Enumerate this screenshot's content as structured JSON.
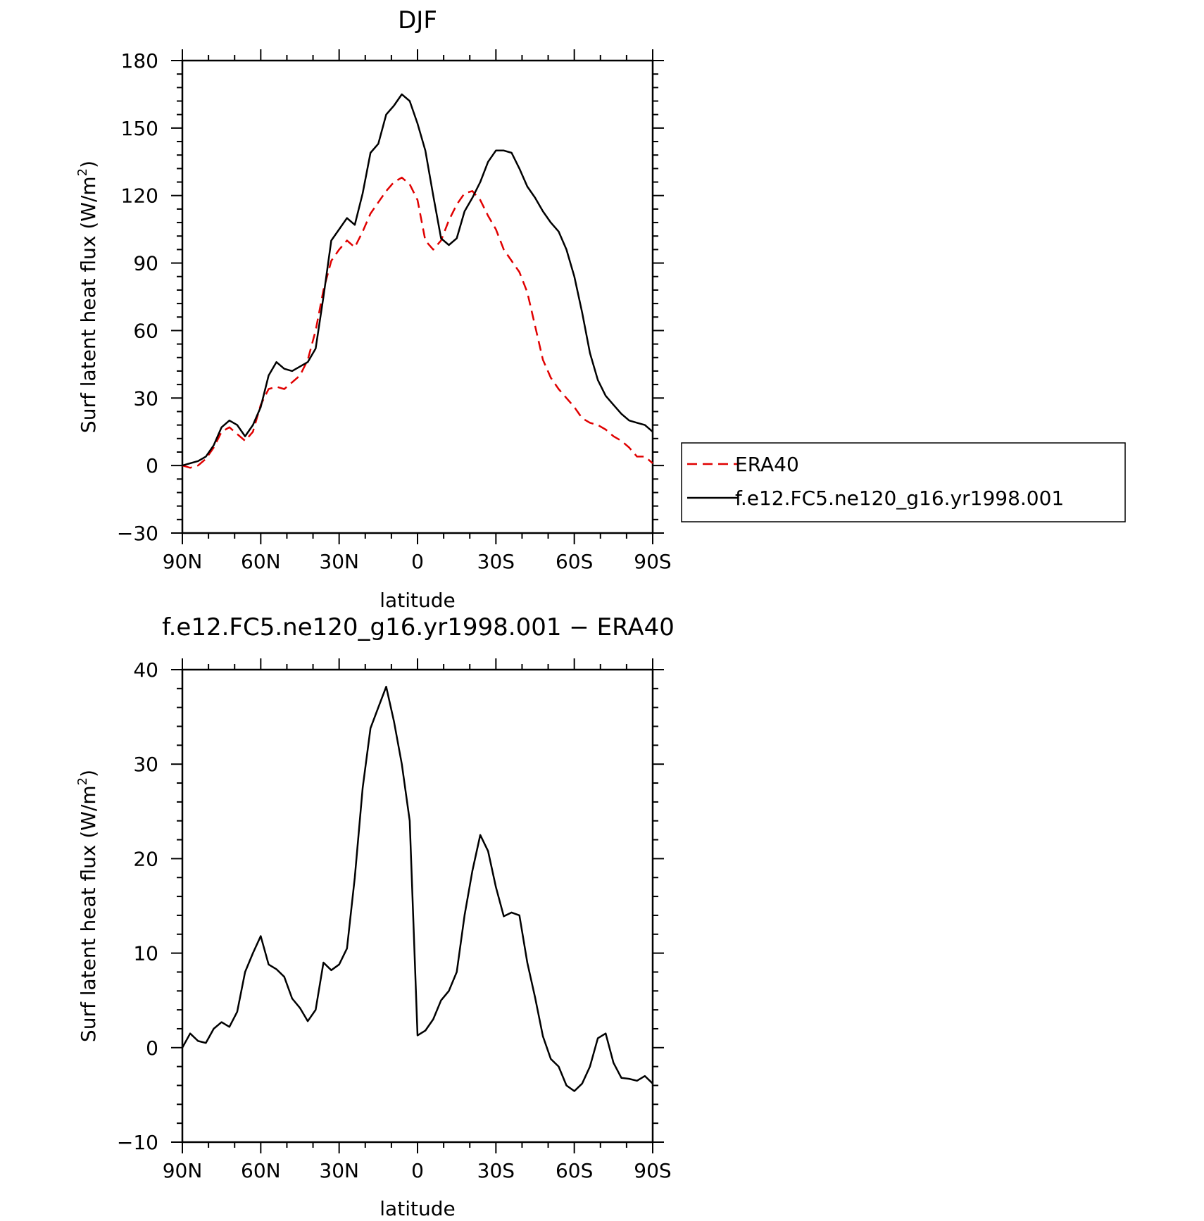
{
  "chart_data": [
    {
      "type": "line",
      "title": "DJF",
      "xlabel": "latitude",
      "ylabel": "Surf latent heat flux (W/m",
      "ylabel_sup": "2",
      "ylabel_close": ")",
      "xlim": [
        90,
        -90
      ],
      "ylim": [
        -30,
        180
      ],
      "x_ticks": [
        90,
        60,
        30,
        0,
        -30,
        -60,
        -90
      ],
      "x_tick_labels": [
        "90N",
        "60N",
        "30N",
        "0",
        "30S",
        "60S",
        "90S"
      ],
      "y_ticks": [
        -30,
        0,
        30,
        60,
        90,
        120,
        150,
        180
      ],
      "y_tick_labels": [
        "−30",
        "0",
        "30",
        "60",
        "90",
        "120",
        "150",
        "180"
      ],
      "legend_position": "right",
      "series": [
        {
          "name": "ERA40",
          "color": "#e00000",
          "dash": true,
          "x": [
            90,
            87,
            84,
            81,
            78,
            75,
            72,
            69,
            66,
            63,
            60,
            57,
            54,
            51,
            48,
            45,
            42,
            39,
            36,
            33,
            30,
            27,
            24,
            21,
            18,
            15,
            12,
            9,
            6,
            3,
            0,
            -3,
            -6,
            -9,
            -12,
            -15,
            -18,
            -21,
            -24,
            -27,
            -30,
            -33,
            -36,
            -39,
            -42,
            -45,
            -48,
            -51,
            -54,
            -57,
            -60,
            -63,
            -66,
            -69,
            -72,
            -75,
            -78,
            -81,
            -84,
            -87,
            -90
          ],
          "y": [
            0,
            -1,
            0,
            3,
            8,
            15,
            17,
            14,
            11,
            15,
            27,
            34,
            35,
            34,
            37,
            40,
            47,
            60,
            78,
            91,
            96,
            100,
            97,
            104,
            112,
            117,
            122,
            126,
            128,
            125,
            118,
            100,
            96,
            100,
            109,
            116,
            121,
            122,
            118,
            111,
            105,
            96,
            91,
            86,
            77,
            62,
            47,
            39,
            34,
            30,
            26,
            21,
            19,
            18,
            16,
            13,
            11,
            8,
            4,
            4,
            1
          ]
        },
        {
          "name": "f.e12.FC5.ne120_g16.yr1998.001",
          "color": "#000000",
          "dash": false,
          "x": [
            90,
            87,
            84,
            81,
            78,
            75,
            72,
            69,
            66,
            63,
            60,
            57,
            54,
            51,
            48,
            45,
            42,
            39,
            36,
            33,
            30,
            27,
            24,
            21,
            18,
            15,
            12,
            9,
            6,
            3,
            0,
            -3,
            -6,
            -9,
            -12,
            -15,
            -18,
            -21,
            -24,
            -27,
            -30,
            -33,
            -36,
            -39,
            -42,
            -45,
            -48,
            -51,
            -54,
            -57,
            -60,
            -63,
            -66,
            -69,
            -72,
            -75,
            -78,
            -81,
            -84,
            -87,
            -90
          ],
          "y": [
            0,
            1,
            2,
            4,
            9,
            17,
            20,
            18,
            13,
            18,
            26,
            40,
            46,
            43,
            42,
            44,
            46,
            52,
            75,
            100,
            105,
            110,
            107,
            121,
            139,
            143,
            156,
            160,
            165,
            162,
            152,
            140,
            120,
            101,
            98,
            101,
            113,
            119,
            126,
            135,
            140,
            140,
            139,
            132,
            124,
            119,
            113,
            108,
            104,
            96,
            84,
            68,
            50,
            38,
            31,
            27,
            23,
            20,
            19,
            18,
            15
          ]
        }
      ]
    },
    {
      "type": "line",
      "title": "f.e12.FC5.ne120_g16.yr1998.001 − ERA40",
      "xlabel": "latitude",
      "ylabel": "Surf latent heat flux (W/m",
      "ylabel_sup": "2",
      "ylabel_close": ")",
      "xlim": [
        90,
        -90
      ],
      "ylim": [
        -10,
        40
      ],
      "x_ticks": [
        90,
        60,
        30,
        0,
        -30,
        -60,
        -90
      ],
      "x_tick_labels": [
        "90N",
        "60N",
        "30N",
        "0",
        "30S",
        "60S",
        "90S"
      ],
      "y_ticks": [
        -10,
        0,
        10,
        20,
        30,
        40
      ],
      "y_tick_labels": [
        "−10",
        "0",
        "10",
        "20",
        "30",
        "40"
      ],
      "series": [
        {
          "color": "#000000",
          "dash": false,
          "x": [
            90,
            87,
            84,
            81,
            78,
            75,
            72,
            69,
            66,
            63,
            60,
            57,
            54,
            51,
            48,
            45,
            42,
            39,
            36,
            33,
            30,
            27,
            24,
            21,
            18,
            15,
            12,
            9,
            6,
            3,
            0,
            -3,
            -6,
            -9,
            -12,
            -15,
            -18,
            -21,
            -24,
            -27,
            -30,
            -33,
            -36,
            -39,
            -42,
            -45,
            -48,
            -51,
            -54,
            -57,
            -60,
            -63,
            -66,
            -69,
            -72,
            -75,
            -78,
            -81,
            -84,
            -87,
            -90
          ],
          "y": [
            0,
            1.5,
            0.7,
            0.5,
            2,
            2.7,
            2.2,
            3.8,
            8,
            10,
            11.8,
            8.8,
            8.3,
            7.5,
            5.2,
            4.2,
            2.8,
            4,
            9,
            8.2,
            8.8,
            10.5,
            18,
            27.5,
            33.8,
            36,
            38.2,
            34.5,
            30,
            24,
            1.3,
            1.8,
            3,
            5,
            6,
            8,
            14,
            18.7,
            22.5,
            20.8,
            17,
            13.9,
            14.3,
            14,
            9,
            5.3,
            1.2,
            -1.2,
            -2,
            -4,
            -4.6,
            -3.8,
            -2,
            1,
            1.5,
            -1.6,
            -3.2,
            -3.3,
            -3.5,
            -3,
            -3.8
          ]
        }
      ]
    }
  ]
}
